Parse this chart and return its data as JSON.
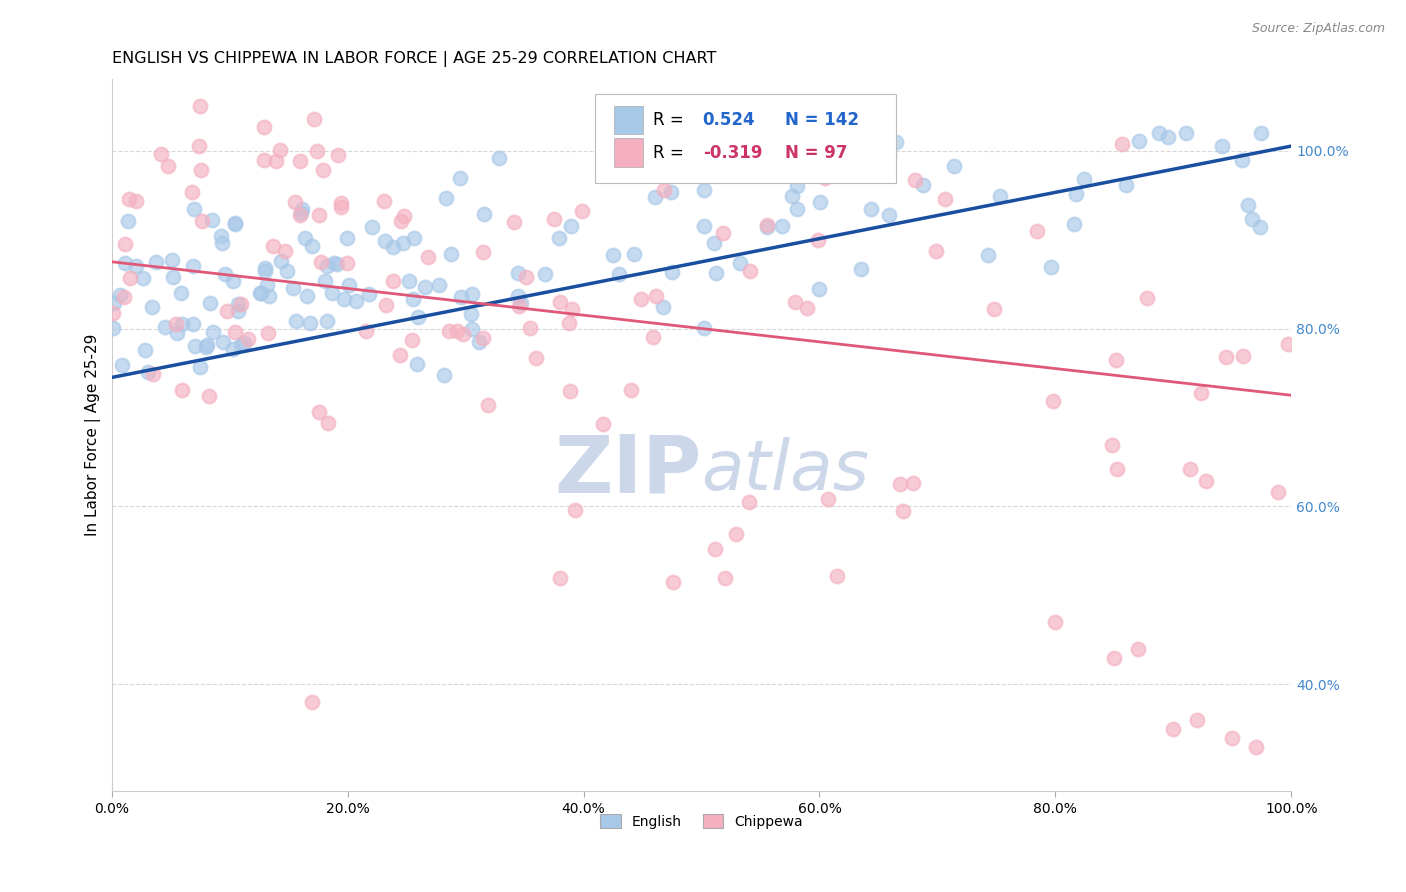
{
  "title": "ENGLISH VS CHIPPEWA IN LABOR FORCE | AGE 25-29 CORRELATION CHART",
  "source_text": "Source: ZipAtlas.com",
  "ylabel": "In Labor Force | Age 25-29",
  "xlim": [
    0.0,
    1.0
  ],
  "ylim": [
    0.28,
    1.08
  ],
  "xticks": [
    0.0,
    0.2,
    0.4,
    0.6,
    0.8,
    1.0
  ],
  "yticks": [
    0.4,
    0.6,
    0.8,
    1.0
  ],
  "xtick_labels": [
    "0.0%",
    "20.0%",
    "40.0%",
    "60.0%",
    "80.0%",
    "100.0%"
  ],
  "ytick_labels": [
    "40.0%",
    "60.0%",
    "80.0%",
    "100.0%"
  ],
  "english_R": 0.524,
  "english_N": 142,
  "chippewa_R": -0.319,
  "chippewa_N": 97,
  "english_color": "#a8c8e8",
  "chippewa_color": "#f4b0c0",
  "english_line_color": "#1a4fa0",
  "chippewa_line_color": "#e05878",
  "ytick_color": "#4488cc",
  "watermark_color": "#ccd8ea",
  "background_color": "#ffffff",
  "grid_color": "#d8d8d8",
  "title_fontsize": 11.5,
  "axis_label_fontsize": 11,
  "tick_fontsize": 10,
  "legend_fontsize": 12,
  "eng_line_x0": 0.0,
  "eng_line_y0": 0.745,
  "eng_line_x1": 1.0,
  "eng_line_y1": 1.005,
  "chip_line_x0": 0.0,
  "chip_line_y0": 0.875,
  "chip_line_x1": 1.0,
  "chip_line_y1": 0.725
}
